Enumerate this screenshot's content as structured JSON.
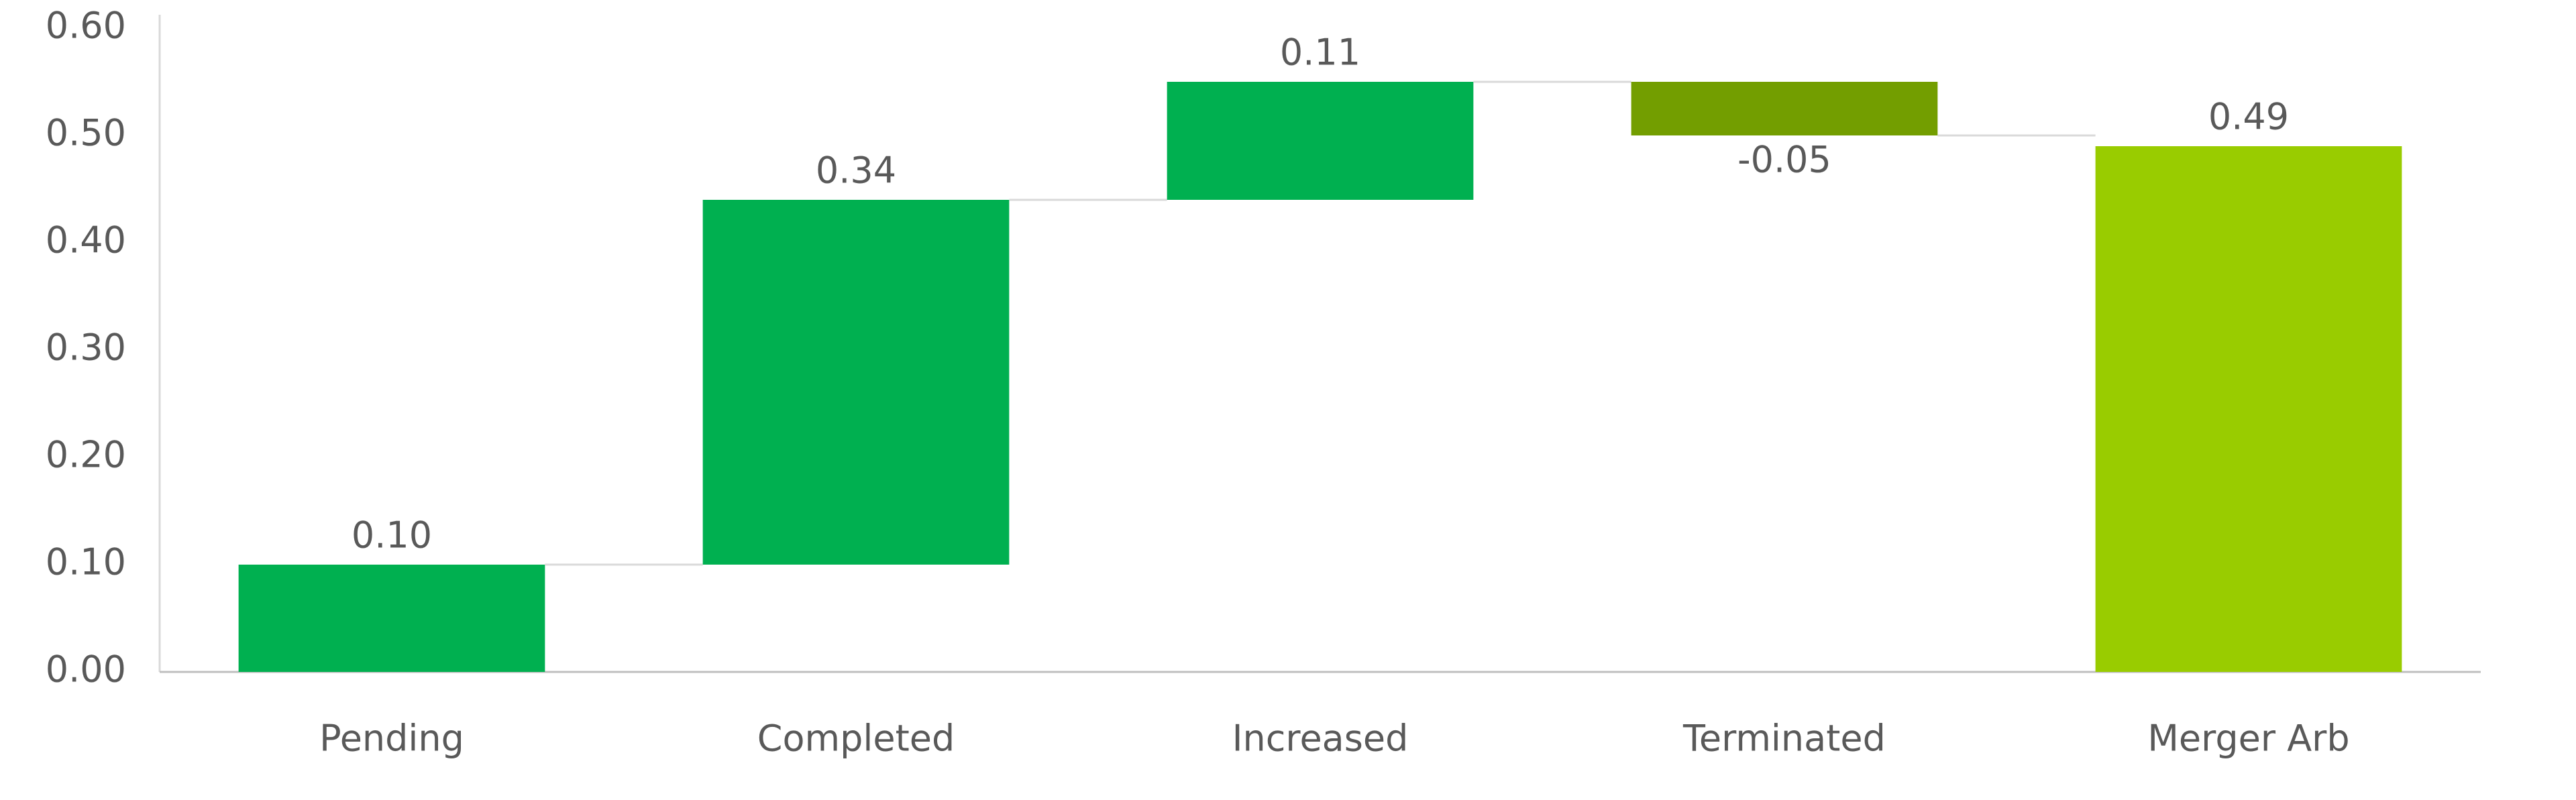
{
  "chart_data": {
    "type": "waterfall",
    "categories": [
      "Pending",
      "Completed",
      "Increased",
      "Terminated",
      "Merger Arb"
    ],
    "values": [
      0.1,
      0.34,
      0.11,
      -0.05,
      0.49
    ],
    "value_labels": [
      "0.10",
      "0.34",
      "0.11",
      "-0.05",
      "0.49"
    ],
    "colors": [
      "#00b050",
      "#00b050",
      "#00b050",
      "#739e00",
      "#99cc00"
    ],
    "totals": [
      4
    ],
    "ylim": [
      0,
      0.6
    ],
    "yticks": [
      {
        "value": 0,
        "label": "0.00"
      },
      {
        "value": 0.1,
        "label": "0.10"
      },
      {
        "value": 0.2,
        "label": "0.20"
      },
      {
        "value": 0.3,
        "label": "0.30"
      },
      {
        "value": 0.4,
        "label": "0.40"
      },
      {
        "value": 0.5,
        "label": "0.50"
      },
      {
        "value": 0.6,
        "label": "0.60"
      }
    ],
    "grid": false
  }
}
